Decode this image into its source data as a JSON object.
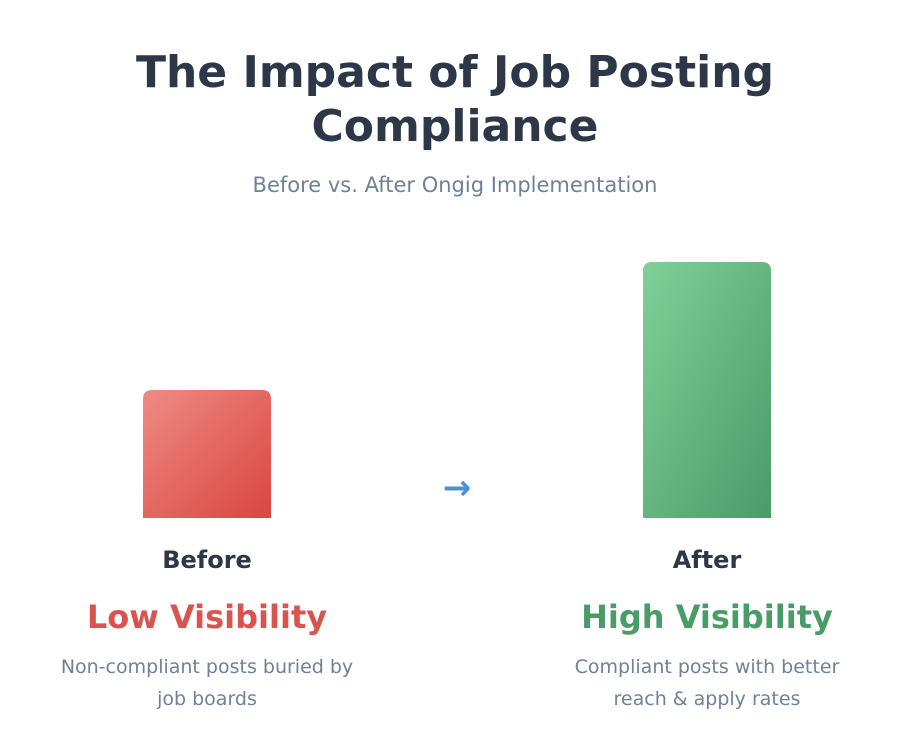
{
  "title": "The Impact of Job Posting Compliance",
  "subtitle": "Before vs. After Ongig Implementation",
  "chart_data": {
    "type": "bar",
    "categories": [
      "Before",
      "After"
    ],
    "values": [
      1,
      2
    ],
    "arrow": "→",
    "statuses": [
      "Low Visibility",
      "High Visibility"
    ],
    "descriptions": [
      "Non-compliant posts buried by job boards",
      "Compliant posts with better reach & apply rates"
    ],
    "colors": {
      "before": "#e05a52",
      "after": "#5aaa78",
      "before_text": "#d9534f",
      "after_text": "#4a9c66",
      "arrow": "#4a90d9"
    }
  }
}
